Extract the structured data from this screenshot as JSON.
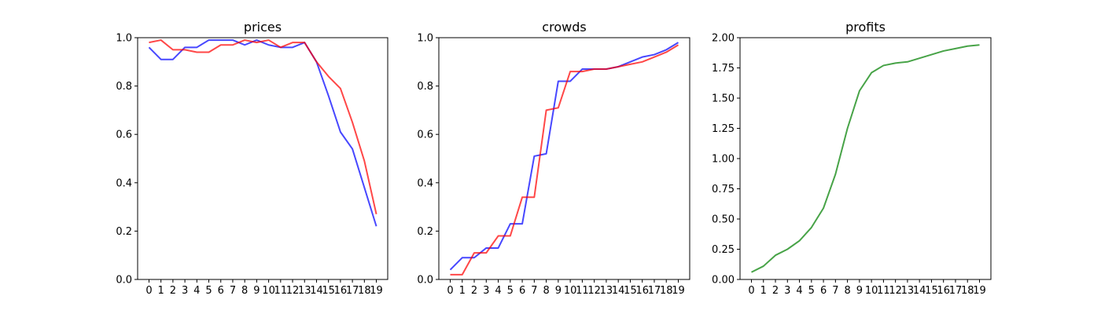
{
  "chart_data": [
    {
      "type": "line",
      "title": "prices",
      "x": [
        0,
        1,
        2,
        3,
        4,
        5,
        6,
        7,
        8,
        9,
        10,
        11,
        12,
        13,
        14,
        15,
        16,
        17,
        18,
        19
      ],
      "xticks": [
        "0",
        "1",
        "2",
        "3",
        "4",
        "5",
        "6",
        "7",
        "8",
        "9",
        "10",
        "11",
        "12",
        "13",
        "14",
        "15",
        "16",
        "17",
        "18",
        "19"
      ],
      "ylim": [
        0,
        1.0
      ],
      "yticks": [
        "0.0",
        "0.2",
        "0.4",
        "0.6",
        "0.8",
        "1.0"
      ],
      "grid": false,
      "series": [
        {
          "color": "#0000ff",
          "values": [
            0.96,
            0.91,
            0.91,
            0.96,
            0.96,
            0.99,
            0.99,
            0.99,
            0.97,
            0.99,
            0.97,
            0.96,
            0.96,
            0.98,
            0.9,
            0.76,
            0.61,
            0.54,
            0.38,
            0.22
          ]
        },
        {
          "color": "#ff0000",
          "values": [
            0.98,
            0.99,
            0.95,
            0.95,
            0.94,
            0.94,
            0.97,
            0.97,
            0.99,
            0.98,
            0.99,
            0.96,
            0.98,
            0.98,
            0.9,
            0.84,
            0.79,
            0.65,
            0.49,
            0.27
          ]
        }
      ]
    },
    {
      "type": "line",
      "title": "crowds",
      "x": [
        0,
        1,
        2,
        3,
        4,
        5,
        6,
        7,
        8,
        9,
        10,
        11,
        12,
        13,
        14,
        15,
        16,
        17,
        18,
        19
      ],
      "xticks": [
        "0",
        "1",
        "2",
        "3",
        "4",
        "5",
        "6",
        "7",
        "8",
        "9",
        "10",
        "11",
        "12",
        "13",
        "14",
        "15",
        "16",
        "17",
        "18",
        "19"
      ],
      "ylim": [
        0,
        1.0
      ],
      "yticks": [
        "0.0",
        "0.2",
        "0.4",
        "0.6",
        "0.8",
        "1.0"
      ],
      "grid": false,
      "series": [
        {
          "color": "#0000ff",
          "values": [
            0.04,
            0.09,
            0.09,
            0.13,
            0.13,
            0.23,
            0.23,
            0.51,
            0.52,
            0.82,
            0.82,
            0.87,
            0.87,
            0.87,
            0.88,
            0.9,
            0.92,
            0.93,
            0.95,
            0.98
          ]
        },
        {
          "color": "#ff0000",
          "values": [
            0.02,
            0.02,
            0.11,
            0.11,
            0.18,
            0.18,
            0.34,
            0.34,
            0.7,
            0.71,
            0.86,
            0.86,
            0.87,
            0.87,
            0.88,
            0.89,
            0.9,
            0.92,
            0.94,
            0.97
          ]
        }
      ]
    },
    {
      "type": "line",
      "title": "profits",
      "x": [
        0,
        1,
        2,
        3,
        4,
        5,
        6,
        7,
        8,
        9,
        10,
        11,
        12,
        13,
        14,
        15,
        16,
        17,
        18,
        19
      ],
      "xticks": [
        "0",
        "1",
        "2",
        "3",
        "4",
        "5",
        "6",
        "7",
        "8",
        "9",
        "10",
        "11",
        "12",
        "13",
        "14",
        "15",
        "16",
        "17",
        "18",
        "19"
      ],
      "ylim": [
        0,
        2.0
      ],
      "yticks": [
        "0.00",
        "0.25",
        "0.50",
        "0.75",
        "1.00",
        "1.25",
        "1.50",
        "1.75",
        "2.00"
      ],
      "grid": false,
      "series": [
        {
          "color": "#008000",
          "values": [
            0.06,
            0.11,
            0.2,
            0.25,
            0.32,
            0.43,
            0.59,
            0.87,
            1.25,
            1.56,
            1.71,
            1.77,
            1.79,
            1.8,
            1.83,
            1.86,
            1.89,
            1.91,
            1.93,
            1.94
          ]
        }
      ]
    }
  ]
}
